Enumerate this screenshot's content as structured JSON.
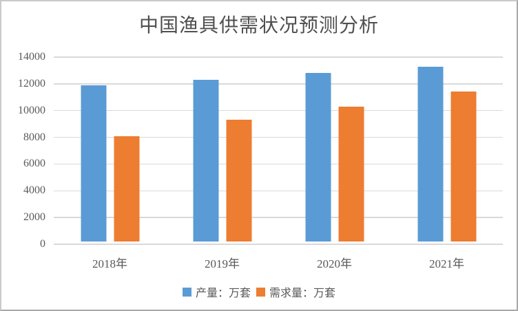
{
  "chart_data": {
    "type": "bar",
    "title": "中国渔具供需状况预测分析",
    "categories": [
      "2018年",
      "2019年",
      "2020年",
      "2021年"
    ],
    "series": [
      {
        "key": "production",
        "name": "产量：万套",
        "color": "#5B9BD5",
        "values": [
          11700,
          12100,
          12600,
          13100
        ]
      },
      {
        "key": "demand",
        "name": "需求量：万套",
        "color": "#ED7D31",
        "values": [
          7900,
          9100,
          10100,
          11200
        ]
      }
    ],
    "xlabel": "",
    "ylabel": "",
    "ylim": [
      0,
      14000
    ],
    "yticks": [
      0,
      2000,
      4000,
      6000,
      8000,
      10000,
      12000,
      14000
    ],
    "grid": true,
    "legend_position": "bottom"
  },
  "colors": {
    "production_bar": "#5B9BD5",
    "demand_bar": "#ED7D31",
    "gridline": "#D9D9D9",
    "text": "#595959",
    "title_text": "#4F4F4F",
    "frame_border": "#ABABAB",
    "background": "#FFFFFF"
  }
}
